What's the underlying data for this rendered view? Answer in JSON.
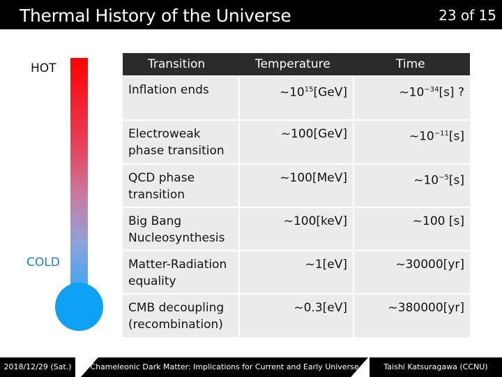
{
  "header": {
    "title": "Thermal History of the Universe",
    "page": "23 of 15"
  },
  "thermometer": {
    "hot_label": "HOT",
    "cold_label": "COLD"
  },
  "table": {
    "headers": [
      "Transition",
      "Temperature",
      "Time"
    ],
    "rows": [
      {
        "transition": [
          "Inflation ends"
        ],
        "temperature_base": "~10",
        "temperature_exp": "15",
        "temperature_unit": "[GeV]",
        "time_base": "~10",
        "time_exp": "−34",
        "time_unit": "[s] ?"
      },
      {
        "transition": [
          "Electroweak",
          "phase transition"
        ],
        "temperature_base": "~100[GeV]",
        "temperature_exp": "",
        "temperature_unit": "",
        "time_base": "~10",
        "time_exp": "−11",
        "time_unit": "[s]"
      },
      {
        "transition": [
          "QCD phase",
          "transition"
        ],
        "temperature_base": "~100[MeV]",
        "temperature_exp": "",
        "temperature_unit": "",
        "time_base": "~10",
        "time_exp": "−5",
        "time_unit": "[s]"
      },
      {
        "transition": [
          "Big Bang",
          "Nucleosynthesis"
        ],
        "temperature_base": "~100[keV]",
        "temperature_exp": "",
        "temperature_unit": "",
        "time_base": "~100 [s]",
        "time_exp": "",
        "time_unit": ""
      },
      {
        "transition": [
          "Matter-Radiation",
          "equality"
        ],
        "temperature_base": "~1[eV]",
        "temperature_exp": "",
        "temperature_unit": "",
        "time_base": "~30000[yr]",
        "time_exp": "",
        "time_unit": ""
      },
      {
        "transition": [
          "CMB decoupling",
          "(recombination)"
        ],
        "temperature_base": "~0.3[eV]",
        "temperature_exp": "",
        "temperature_unit": "",
        "time_base": "~380000[yr]",
        "time_exp": "",
        "time_unit": ""
      }
    ]
  },
  "footer": {
    "date": "2018/12/29 (Sat.)",
    "talk": "Chameleonic Dark Matter: Implications for Current and Early Universe",
    "author": "Taishi Katsuragawa (CCNU)"
  }
}
